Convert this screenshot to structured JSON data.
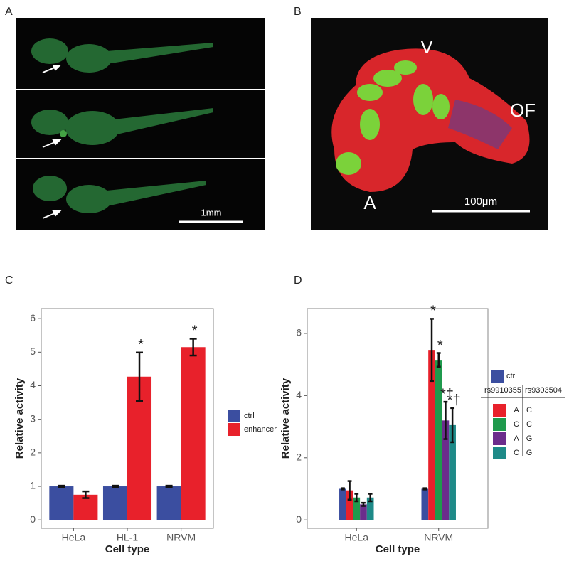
{
  "panel_labels": [
    "A",
    "B",
    "C",
    "D"
  ],
  "image_a": {
    "scale_bar": "1mm"
  },
  "image_b": {
    "labels": [
      "V",
      "OF",
      "A"
    ],
    "scale_bar": "100μm"
  },
  "chart_data": [
    {
      "type": "bar",
      "xlabel": "Cell type",
      "ylabel": "Relative activity",
      "categories": [
        "HeLa",
        "HL-1",
        "NRVM"
      ],
      "series": [
        {
          "name": "ctrl",
          "color": "#3b4ea0",
          "values": [
            1.0,
            1.0,
            1.0
          ],
          "errors": [
            0.02,
            0.02,
            0.02
          ],
          "significance": [
            null,
            null,
            null
          ]
        },
        {
          "name": "enhancer",
          "color": "#e8212b",
          "values": [
            0.75,
            4.27,
            5.15
          ],
          "errors": [
            0.1,
            0.72,
            0.25
          ],
          "significance": [
            null,
            "*",
            "*"
          ]
        }
      ],
      "ylim": [
        -0.25,
        6.3
      ],
      "yticks": [
        0,
        1,
        2,
        3,
        4,
        5,
        6
      ]
    },
    {
      "type": "bar",
      "xlabel": "Cell type",
      "ylabel": "Relative activity",
      "categories": [
        "HeLa",
        "NRVM"
      ],
      "legend_columns": [
        "rs9910355",
        "rs9303504"
      ],
      "series": [
        {
          "name": "ctrl",
          "color": "#3b4ea0",
          "values": [
            1.0,
            1.0
          ],
          "errors": [
            0.02,
            0.02
          ],
          "significance": [
            null,
            null
          ]
        },
        {
          "alleles": [
            "A",
            "C"
          ],
          "color": "#e8212b",
          "values": [
            0.95,
            5.47
          ],
          "errors": [
            0.3,
            1.0
          ],
          "significance": [
            null,
            "*"
          ]
        },
        {
          "alleles": [
            "C",
            "C"
          ],
          "color": "#1f9a4d",
          "values": [
            0.72,
            5.15
          ],
          "errors": [
            0.12,
            0.22
          ],
          "significance": [
            null,
            "*"
          ]
        },
        {
          "alleles": [
            "A",
            "G"
          ],
          "color": "#6b2d8c",
          "values": [
            0.5,
            3.2
          ],
          "errors": [
            0.05,
            0.6
          ],
          "significance": [
            null,
            "*†"
          ]
        },
        {
          "alleles": [
            "C",
            "G"
          ],
          "color": "#1e8a88",
          "values": [
            0.72,
            3.05
          ],
          "errors": [
            0.12,
            0.55
          ],
          "significance": [
            null,
            "*†"
          ]
        }
      ],
      "ylim": [
        -0.27,
        6.8
      ],
      "yticks": [
        0,
        2,
        4,
        6
      ]
    }
  ]
}
